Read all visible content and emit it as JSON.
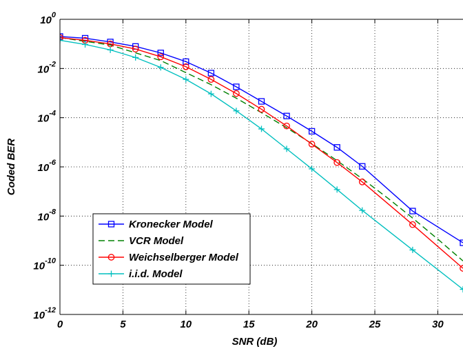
{
  "chart_data": {
    "type": "line",
    "title": "",
    "xlabel": "SNR (dB)",
    "ylabel": "Coded BER",
    "xlim": [
      0,
      32
    ],
    "ylim_exponent": [
      -12,
      0
    ],
    "yscale": "log",
    "grid": true,
    "legend_position": "lower-left",
    "x_ticks": [
      0,
      5,
      10,
      15,
      20,
      25,
      30
    ],
    "y_ticks": [
      {
        "base": "10",
        "exp": "0"
      },
      {
        "base": "10",
        "exp": "-2"
      },
      {
        "base": "10",
        "exp": "-4"
      },
      {
        "base": "10",
        "exp": "-6"
      },
      {
        "base": "10",
        "exp": "-8"
      },
      {
        "base": "10",
        "exp": "-10"
      },
      {
        "base": "10",
        "exp": "-12"
      }
    ],
    "series": [
      {
        "name": "Kronecker Model",
        "color": "#0000ff",
        "dash": "solid",
        "marker": "square",
        "x": [
          0,
          2,
          4,
          6,
          8,
          10,
          12,
          14,
          16,
          18,
          20,
          22,
          24,
          28,
          32
        ],
        "y": [
          0.2,
          0.17,
          0.12,
          0.079,
          0.043,
          0.019,
          0.0065,
          0.0018,
          0.00046,
          0.000117,
          2.8e-05,
          6.2e-06,
          1.05e-06,
          1.6e-08,
          8.2e-10
        ]
      },
      {
        "name": "VCR Model",
        "color": "#008000",
        "dash": "dashed",
        "marker": "none",
        "x": [
          0,
          4,
          8,
          12,
          14,
          16,
          18,
          20,
          22,
          24,
          26,
          28,
          30,
          32
        ],
        "y": [
          0.18,
          0.09,
          0.021,
          0.0022,
          0.00062,
          0.00016,
          3.9e-05,
          8.8e-06,
          1.8e-06,
          3.3e-07,
          5.5e-08,
          8.3e-09,
          1.15e-09,
          1.5e-10
        ]
      },
      {
        "name": "Weichselberger Model",
        "color": "#ff0000",
        "dash": "solid",
        "marker": "circle",
        "x": [
          0,
          2,
          4,
          6,
          8,
          10,
          12,
          14,
          16,
          18,
          20,
          22,
          24,
          28,
          32
        ],
        "y": [
          0.18,
          0.14,
          0.1,
          0.062,
          0.03,
          0.0118,
          0.0036,
          0.00096,
          0.00022,
          4.6e-05,
          8.4e-06,
          1.5e-06,
          2.45e-07,
          4.5e-09,
          7.5e-11
        ]
      },
      {
        "name": "i.i.d. Model",
        "color": "#00bfbf",
        "dash": "solid",
        "marker": "plus",
        "x": [
          0,
          2,
          4,
          6,
          8,
          10,
          12,
          14,
          16,
          18,
          20,
          22,
          24,
          28,
          32
        ],
        "y": [
          0.14,
          0.095,
          0.057,
          0.028,
          0.0111,
          0.0036,
          0.00093,
          0.00019,
          3.5e-05,
          5.4e-06,
          8.3e-07,
          1.2e-07,
          1.7e-08,
          4.2e-10,
          1.05e-11
        ]
      }
    ]
  }
}
